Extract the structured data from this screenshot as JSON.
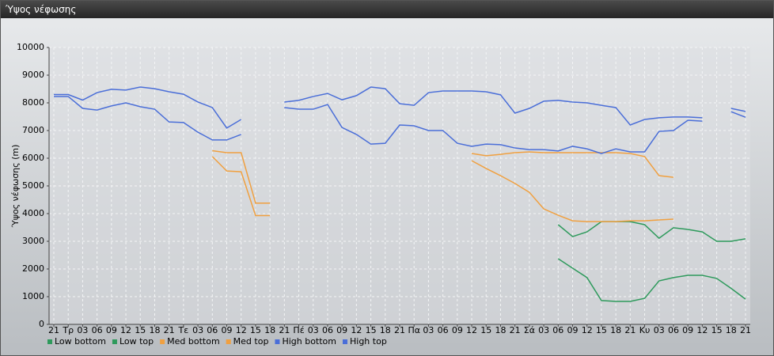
{
  "window_title": "Ύψος νέφωσης",
  "chart_data": {
    "type": "line",
    "y_label": "Ύψος νέφωσης (m)",
    "categories": [
      "21",
      "Τρ",
      "03",
      "06",
      "09",
      "12",
      "15",
      "18",
      "21",
      "Τε",
      "03",
      "06",
      "09",
      "12",
      "15",
      "18",
      "21",
      "Πέ",
      "03",
      "06",
      "09",
      "12",
      "15",
      "18",
      "21",
      "Πα",
      "03",
      "06",
      "09",
      "12",
      "15",
      "18",
      "21",
      "Σά",
      "03",
      "06",
      "09",
      "12",
      "15",
      "18",
      "21",
      "Κυ",
      "03",
      "06",
      "09",
      "12",
      "15",
      "18",
      "21"
    ],
    "ylim": [
      0,
      10000
    ],
    "yticks": [
      0,
      1000,
      2000,
      3000,
      4000,
      5000,
      6000,
      7000,
      8000,
      9000,
      10000
    ],
    "grid": true,
    "legend": "bottom",
    "series": [
      {
        "name": "Low bottom",
        "color": "#2e9a5c",
        "values": [
          null,
          null,
          null,
          null,
          null,
          null,
          null,
          null,
          null,
          null,
          null,
          null,
          null,
          null,
          null,
          null,
          null,
          null,
          null,
          null,
          null,
          null,
          null,
          null,
          null,
          null,
          null,
          null,
          null,
          null,
          null,
          null,
          null,
          null,
          null,
          2370,
          2030,
          1690,
          860,
          830,
          830,
          940,
          1570,
          1690,
          1770,
          1770,
          1660,
          1300,
          910
        ]
      },
      {
        "name": "Low top",
        "color": "#2e9a5c",
        "values": [
          null,
          null,
          null,
          null,
          null,
          null,
          null,
          null,
          null,
          null,
          null,
          null,
          null,
          null,
          null,
          null,
          null,
          null,
          null,
          null,
          null,
          null,
          null,
          null,
          null,
          null,
          null,
          null,
          null,
          null,
          null,
          null,
          null,
          null,
          null,
          3600,
          3170,
          3340,
          3710,
          3710,
          3710,
          3600,
          3110,
          3490,
          3430,
          3340,
          3000,
          3000,
          3090
        ]
      },
      {
        "name": "Med bottom",
        "color": "#f0a040",
        "values": [
          null,
          null,
          null,
          null,
          null,
          null,
          null,
          null,
          null,
          null,
          null,
          6060,
          5540,
          5510,
          3930,
          3930,
          null,
          null,
          null,
          null,
          null,
          null,
          null,
          null,
          null,
          null,
          null,
          null,
          null,
          5910,
          5630,
          5370,
          5090,
          4770,
          4170,
          3940,
          3740,
          3710,
          3710,
          3710,
          3740,
          3740,
          3770,
          3800,
          null,
          null,
          null,
          null,
          null
        ]
      },
      {
        "name": "Med top",
        "color": "#f0a040",
        "values": [
          null,
          null,
          null,
          null,
          null,
          null,
          null,
          null,
          null,
          null,
          null,
          6270,
          6200,
          6200,
          4380,
          4380,
          null,
          null,
          null,
          null,
          null,
          null,
          null,
          null,
          null,
          null,
          null,
          null,
          null,
          6170,
          6090,
          6140,
          6200,
          6230,
          6200,
          6200,
          6200,
          6200,
          6200,
          6200,
          6170,
          6060,
          5370,
          5310,
          null,
          null,
          null,
          null,
          null
        ]
      },
      {
        "name": "High bottom",
        "color": "#4a6ed8",
        "values": [
          8230,
          8230,
          7800,
          7740,
          7890,
          8000,
          7860,
          7770,
          7310,
          7290,
          6940,
          6660,
          6660,
          6860,
          null,
          null,
          7830,
          7770,
          7770,
          7940,
          7110,
          6860,
          6510,
          6540,
          7200,
          7170,
          7000,
          7000,
          6540,
          6430,
          6510,
          6490,
          6370,
          6310,
          6310,
          6260,
          6430,
          6340,
          6170,
          6340,
          6230,
          6230,
          6970,
          7000,
          7370,
          7340,
          null,
          7680,
          7480
        ]
      },
      {
        "name": "High top",
        "color": "#4a6ed8",
        "values": [
          8300,
          8300,
          8100,
          8370,
          8490,
          8460,
          8570,
          8510,
          8400,
          8310,
          8030,
          7830,
          7090,
          7400,
          null,
          null,
          8030,
          8090,
          8230,
          8340,
          8110,
          8260,
          8570,
          8510,
          7970,
          7910,
          8370,
          8430,
          8430,
          8430,
          8400,
          8290,
          7630,
          7800,
          8060,
          8090,
          8030,
          8000,
          7910,
          7830,
          7200,
          7400,
          7460,
          7490,
          7490,
          7460,
          null,
          7800,
          7690
        ]
      }
    ]
  }
}
